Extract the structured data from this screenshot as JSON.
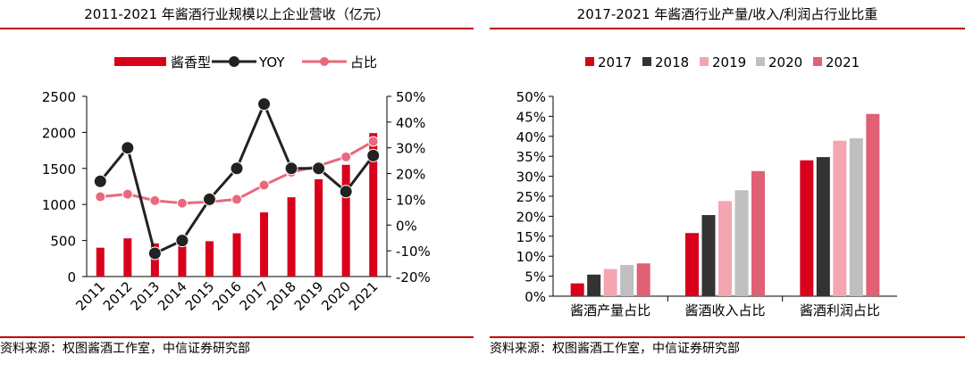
{
  "left_panel": {
    "title": "2011-2021 年酱酒行业规模以上企业营收（亿元）",
    "source": "资料来源：权图酱酒工作室，中信证券研究部"
  },
  "right_panel": {
    "title": "2017-2021 年酱酒行业产量/收入/利润占行业比重",
    "source": "资料来源：权图酱酒工作室，中信证券研究部"
  },
  "chart_data": [
    {
      "type": "bar",
      "title": "2011-2021 年酱酒行业规模以上企业营收（亿元）",
      "categories": [
        "2011",
        "2012",
        "2013",
        "2014",
        "2015",
        "2016",
        "2017",
        "2018",
        "2019",
        "2020",
        "2021"
      ],
      "series": [
        {
          "name": "酱香型",
          "type": "bar",
          "axis": "left",
          "color": "#d9001b",
          "values": [
            400,
            530,
            460,
            500,
            490,
            600,
            890,
            1100,
            1350,
            1550,
            1990
          ]
        },
        {
          "name": "YOY",
          "type": "line",
          "axis": "right",
          "unit": "%",
          "color": "#222222",
          "values": [
            17,
            30,
            -11,
            -6,
            10,
            22,
            47,
            22,
            22,
            13,
            27
          ]
        },
        {
          "name": "占比",
          "type": "line",
          "axis": "right",
          "unit": "%",
          "color": "#e8697d",
          "values": [
            11,
            12,
            9.5,
            8.5,
            9,
            10,
            15.5,
            20.5,
            23,
            26.5,
            32.5
          ]
        }
      ],
      "ylim_left": [
        0,
        2500
      ],
      "yticks_left": [
        "0",
        "500",
        "1000",
        "1500",
        "2000",
        "2500"
      ],
      "ylim_right": [
        -20,
        50
      ],
      "yticks_right": [
        "-20%",
        "-10%",
        "0%",
        "10%",
        "20%",
        "30%",
        "40%",
        "50%"
      ],
      "legend": "top",
      "grid": false
    },
    {
      "type": "bar",
      "title": "2017-2021 年酱酒行业产量/收入/利润占行业比重",
      "categories": [
        "酱酒产量占比",
        "酱酒收入占比",
        "酱酒利润占比"
      ],
      "series": [
        {
          "name": "2017",
          "color": "#d9001b",
          "values": [
            3.2,
            15.8,
            34.0
          ]
        },
        {
          "name": "2018",
          "color": "#333333",
          "values": [
            5.4,
            20.3,
            34.8
          ]
        },
        {
          "name": "2019",
          "color": "#f4a6b0",
          "values": [
            6.8,
            23.8,
            38.9
          ]
        },
        {
          "name": "2020",
          "color": "#bfbfbf",
          "values": [
            7.8,
            26.5,
            39.5
          ]
        },
        {
          "name": "2021",
          "color": "#e06074",
          "values": [
            8.2,
            31.3,
            45.6
          ]
        }
      ],
      "ylim": [
        0,
        50
      ],
      "yticks": [
        "0%",
        "5%",
        "10%",
        "15%",
        "20%",
        "25%",
        "30%",
        "35%",
        "40%",
        "45%",
        "50%"
      ],
      "legend": "top",
      "grid": false
    }
  ]
}
